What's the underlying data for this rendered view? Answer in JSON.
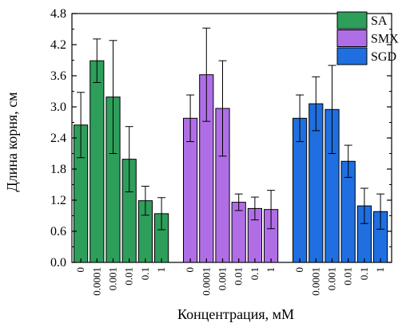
{
  "chart_data": {
    "type": "bar",
    "title": "",
    "xlabel": "Концентрация, мМ",
    "ylabel": "Длина корня, см",
    "ylim": [
      0,
      4.8
    ],
    "yticks": [
      "0.0",
      "0.6",
      "1.2",
      "1.8",
      "2.4",
      "3.0",
      "3.6",
      "4.2",
      "4.8"
    ],
    "categories": [
      "0",
      "0.0001",
      "0.001",
      "0.01",
      "0.1",
      "1"
    ],
    "grid": false,
    "legend_position": "top-right",
    "series": [
      {
        "name": "SA",
        "color": "#2e9e5b",
        "values": [
          2.65,
          3.89,
          3.19,
          1.99,
          1.19,
          0.94
        ],
        "errors": [
          0.63,
          0.42,
          1.09,
          0.63,
          0.28,
          0.31
        ]
      },
      {
        "name": "SMX",
        "color": "#b06ee6",
        "values": [
          2.78,
          3.62,
          2.97,
          1.16,
          1.04,
          1.02
        ],
        "errors": [
          0.45,
          0.9,
          0.92,
          0.16,
          0.22,
          0.37
        ]
      },
      {
        "name": "SGD",
        "color": "#1f6fe0",
        "values": [
          2.78,
          3.06,
          2.95,
          1.95,
          1.09,
          0.98
        ],
        "errors": [
          0.45,
          0.52,
          0.85,
          0.31,
          0.34,
          0.34
        ]
      }
    ]
  }
}
